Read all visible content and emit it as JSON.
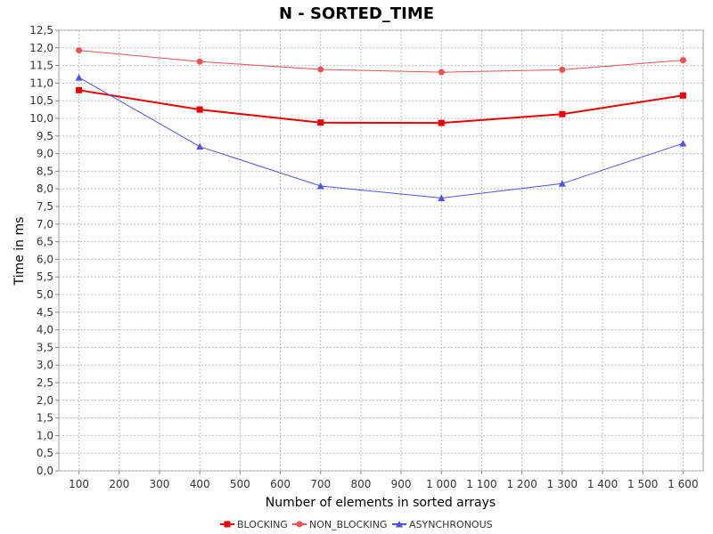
{
  "chart_data": {
    "type": "line",
    "title": "N - SORTED_TIME",
    "xlabel": "Number of elements in sorted arrays",
    "ylabel": "Time in ms",
    "x_ticks": [
      "100",
      "200",
      "300",
      "400",
      "500",
      "600",
      "700",
      "800",
      "900",
      "1 000",
      "1 100",
      "1 200",
      "1 300",
      "1 400",
      "1 500",
      "1 600"
    ],
    "y_ticks": [
      "0,0",
      "0,5",
      "1,0",
      "1,5",
      "2,0",
      "2,5",
      "3,0",
      "3,5",
      "4,0",
      "4,5",
      "5,0",
      "5,5",
      "6,0",
      "6,5",
      "7,0",
      "7,5",
      "8,0",
      "8,5",
      "9,0",
      "9,5",
      "10,0",
      "10,5",
      "11,0",
      "11,5",
      "12,0",
      "12,5"
    ],
    "xlim": [
      50,
      1650
    ],
    "ylim": [
      0,
      12.5
    ],
    "grid": true,
    "legend_position": "bottom",
    "series": [
      {
        "name": "BLOCKING",
        "color": "#ee0000",
        "marker": "square",
        "x": [
          100,
          400,
          700,
          1000,
          1300,
          1600
        ],
        "y": [
          10.8,
          10.25,
          9.88,
          9.87,
          10.12,
          10.65
        ]
      },
      {
        "name": "NON_BLOCKING",
        "color": "#f05050",
        "marker": "circle",
        "x": [
          100,
          400,
          700,
          1000,
          1300,
          1600
        ],
        "y": [
          11.93,
          11.61,
          11.39,
          11.31,
          11.38,
          11.65
        ]
      },
      {
        "name": "ASYNCHRONOUS",
        "color": "#5050ee",
        "marker": "triangle",
        "x": [
          100,
          400,
          700,
          1000,
          1300,
          1600
        ],
        "y": [
          11.16,
          9.2,
          8.08,
          7.74,
          8.15,
          9.29
        ]
      }
    ]
  }
}
